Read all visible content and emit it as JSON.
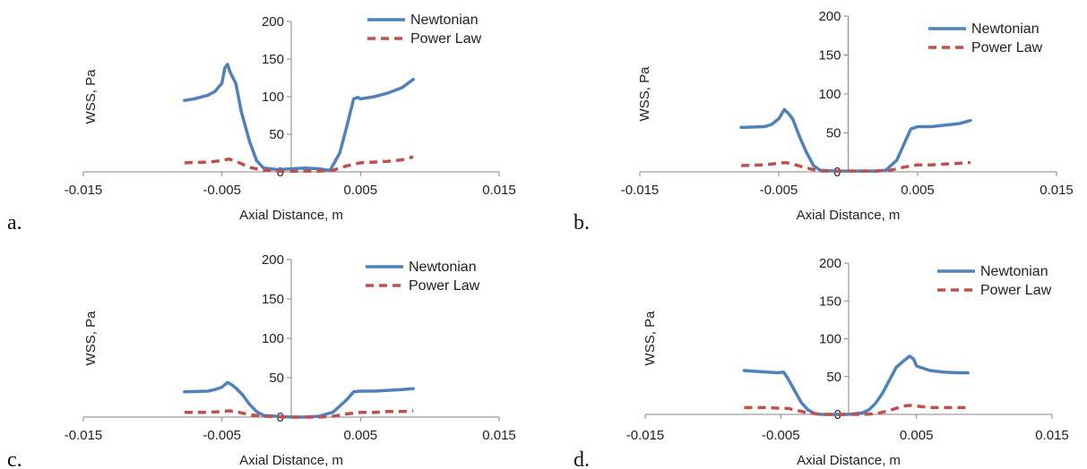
{
  "colors": {
    "newtonian": "#4f81bd",
    "power_law": "#c0504d",
    "axis": "#868686",
    "text": "#222222"
  },
  "chart_data": [
    {
      "id": "a",
      "panel_label": "a.",
      "type": "line",
      "xlabel": "Axial Distance, m",
      "ylabel": "WSS, Pa",
      "xlim": [
        -0.015,
        0.015
      ],
      "ylim": [
        0,
        200
      ],
      "xticks": [
        "-0.015",
        "-0.005",
        "0.005",
        "0.015"
      ],
      "xtick_values": [
        -0.015,
        -0.005,
        0.005,
        0.015
      ],
      "yticks": [
        "0",
        "50",
        "100",
        "150",
        "200"
      ],
      "ytick_values": [
        0,
        50,
        100,
        150,
        200
      ],
      "legend_position": "top-right",
      "series": [
        {
          "name": "Newtonian",
          "style": "solid",
          "x": [
            -0.0077,
            -0.007,
            -0.006,
            -0.0055,
            -0.005,
            -0.0048,
            -0.0046,
            -0.0044,
            -0.004,
            -0.0036,
            -0.003,
            -0.0025,
            -0.002,
            -0.001,
            0,
            0.001,
            0.002,
            0.0028,
            0.0035,
            0.004,
            0.0045,
            0.0048,
            0.005,
            0.006,
            0.007,
            0.008,
            0.0088
          ],
          "y": [
            95,
            97,
            102,
            107,
            118,
            138,
            143,
            132,
            118,
            80,
            40,
            15,
            5,
            3,
            4,
            5,
            4,
            2,
            25,
            60,
            97,
            99,
            97,
            100,
            105,
            112,
            123
          ]
        },
        {
          "name": "Power Law",
          "style": "dashed",
          "x": [
            -0.0077,
            -0.006,
            -0.005,
            -0.0045,
            -0.004,
            -0.003,
            -0.002,
            -0.001,
            0,
            0.002,
            0.003,
            0.004,
            0.005,
            0.006,
            0.007,
            0.008,
            0.0088
          ],
          "y": [
            12,
            13,
            15,
            17,
            14,
            6,
            2,
            1,
            1,
            1,
            2,
            8,
            12,
            13,
            14,
            16,
            20
          ]
        }
      ]
    },
    {
      "id": "b",
      "panel_label": "b.",
      "type": "line",
      "xlabel": "Axial Distance, m",
      "ylabel": "WSS, Pa",
      "xlim": [
        -0.015,
        0.015
      ],
      "ylim": [
        0,
        200
      ],
      "xticks": [
        "-0.015",
        "-0.005",
        "0.005",
        "0.015"
      ],
      "xtick_values": [
        -0.015,
        -0.005,
        0.005,
        0.015
      ],
      "yticks": [
        "0",
        "50",
        "100",
        "150",
        "200"
      ],
      "ytick_values": [
        0,
        50,
        100,
        150,
        200
      ],
      "legend_position": "top-right",
      "series": [
        {
          "name": "Newtonian",
          "style": "solid",
          "x": [
            -0.0077,
            -0.006,
            -0.0055,
            -0.005,
            -0.0046,
            -0.0043,
            -0.004,
            -0.0035,
            -0.003,
            -0.0025,
            -0.002,
            -0.001,
            0,
            0.001,
            0.002,
            0.0027,
            0.0035,
            0.004,
            0.0045,
            0.005,
            0.006,
            0.007,
            0.008,
            0.0088
          ],
          "y": [
            57,
            58,
            61,
            68,
            80,
            75,
            68,
            45,
            25,
            8,
            2,
            1,
            1,
            1,
            1,
            2,
            15,
            35,
            55,
            58,
            58,
            60,
            62,
            66
          ]
        },
        {
          "name": "Power Law",
          "style": "dashed",
          "x": [
            -0.0077,
            -0.006,
            -0.005,
            -0.0045,
            -0.004,
            -0.003,
            -0.002,
            0,
            0.002,
            0.003,
            0.004,
            0.005,
            0.006,
            0.007,
            0.008,
            0.0088
          ],
          "y": [
            8,
            9,
            11,
            12,
            10,
            5,
            1,
            1,
            1,
            2,
            6,
            9,
            9,
            10,
            11,
            12
          ]
        }
      ]
    },
    {
      "id": "c",
      "panel_label": "c.",
      "type": "line",
      "xlabel": "Axial Distance, m",
      "ylabel": "WSS, Pa",
      "xlim": [
        -0.015,
        0.015
      ],
      "ylim": [
        0,
        200
      ],
      "xticks": [
        "-0.015",
        "-0.005",
        "0.005",
        "0.015"
      ],
      "xtick_values": [
        -0.015,
        -0.005,
        0.005,
        0.015
      ],
      "yticks": [
        "0",
        "50",
        "100",
        "150",
        "200"
      ],
      "ytick_values": [
        0,
        50,
        100,
        150,
        200
      ],
      "legend_position": "top-right",
      "series": [
        {
          "name": "Newtonian",
          "style": "solid",
          "x": [
            -0.0077,
            -0.006,
            -0.0055,
            -0.005,
            -0.0046,
            -0.0043,
            -0.004,
            -0.0035,
            -0.003,
            -0.0025,
            -0.002,
            -0.001,
            0,
            0.001,
            0.002,
            0.003,
            0.0035,
            0.004,
            0.0045,
            0.005,
            0.006,
            0.007,
            0.008,
            0.0088
          ],
          "y": [
            32,
            33,
            35,
            38,
            44,
            41,
            37,
            28,
            16,
            7,
            2,
            1,
            0,
            0,
            1,
            6,
            14,
            22,
            32,
            33,
            33,
            34,
            35,
            36
          ]
        },
        {
          "name": "Power Law",
          "style": "dashed",
          "x": [
            -0.0077,
            -0.006,
            -0.005,
            -0.0045,
            -0.004,
            -0.003,
            -0.002,
            0,
            0.002,
            0.003,
            0.004,
            0.005,
            0.006,
            0.007,
            0.008,
            0.0088
          ],
          "y": [
            6,
            6,
            7,
            8,
            7,
            3,
            1,
            0,
            0,
            1,
            4,
            6,
            6,
            7,
            7,
            8
          ]
        }
      ]
    },
    {
      "id": "d",
      "panel_label": "d.",
      "type": "line",
      "xlabel": "Axial Distance, m",
      "ylabel": "WSS, Pa",
      "xlim": [
        -0.015,
        0.015
      ],
      "ylim": [
        0,
        200
      ],
      "xticks": [
        "-0.015",
        "-0.005",
        "0.005",
        "0.015"
      ],
      "xtick_values": [
        -0.015,
        -0.005,
        0.005,
        0.015
      ],
      "yticks": [
        "0",
        "50",
        "100",
        "150",
        "200"
      ],
      "ytick_values": [
        0,
        50,
        100,
        150,
        200
      ],
      "legend_position": "top-right",
      "series": [
        {
          "name": "Newtonian",
          "style": "solid",
          "x": [
            -0.0077,
            -0.007,
            -0.006,
            -0.0052,
            -0.0048,
            -0.0045,
            -0.004,
            -0.0035,
            -0.003,
            -0.0025,
            -0.002,
            -0.001,
            0,
            0.001,
            0.0015,
            0.002,
            0.0025,
            0.003,
            0.0035,
            0.004,
            0.0045,
            0.0048,
            0.005,
            0.006,
            0.007,
            0.008,
            0.0088
          ],
          "y": [
            58,
            57,
            56,
            55,
            56,
            48,
            32,
            16,
            6,
            1,
            0,
            0,
            0,
            2,
            6,
            15,
            28,
            45,
            62,
            70,
            77,
            73,
            64,
            58,
            56,
            55,
            55
          ]
        },
        {
          "name": "Power Law",
          "style": "dashed",
          "x": [
            -0.0077,
            -0.006,
            -0.005,
            -0.0045,
            -0.004,
            -0.003,
            -0.002,
            0,
            0.001,
            0.002,
            0.003,
            0.0035,
            0.004,
            0.0045,
            0.005,
            0.006,
            0.007,
            0.008,
            0.0088
          ],
          "y": [
            9,
            9,
            8,
            8,
            6,
            2,
            0,
            0,
            0,
            1,
            5,
            8,
            11,
            12,
            11,
            9,
            9,
            9,
            9
          ]
        }
      ]
    }
  ]
}
